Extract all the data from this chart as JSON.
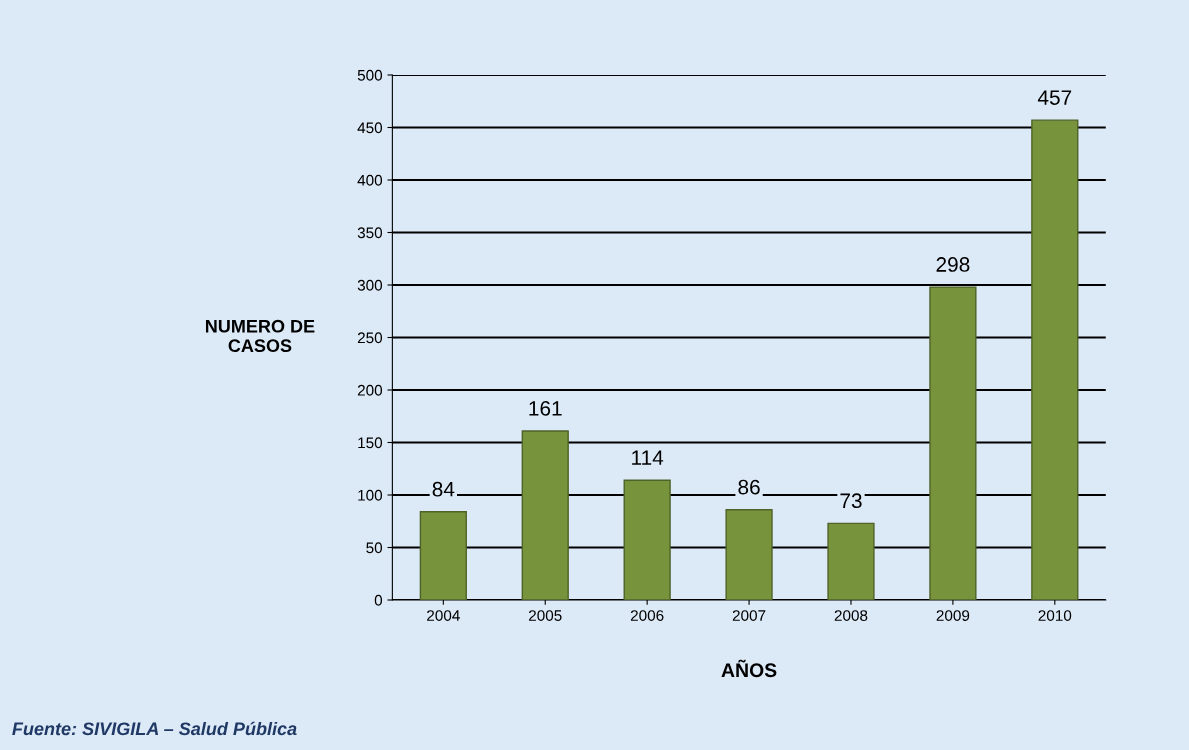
{
  "chart_data": {
    "type": "bar",
    "ylabel": "NUMERO DE\nCASOS",
    "xlabel": "AÑOS",
    "categories": [
      "2004",
      "2005",
      "2006",
      "2007",
      "2008",
      "2009",
      "2010"
    ],
    "values": [
      84,
      161,
      114,
      86,
      73,
      298,
      457
    ],
    "color": "#77933c",
    "ylim": [
      0,
      500
    ],
    "yticks": [
      0,
      50,
      100,
      150,
      200,
      250,
      300,
      350,
      400,
      450,
      500
    ],
    "grid": "y",
    "data_labels": true,
    "annotations": [
      "Fuente: SIVIGILA – Salud Pública"
    ]
  }
}
